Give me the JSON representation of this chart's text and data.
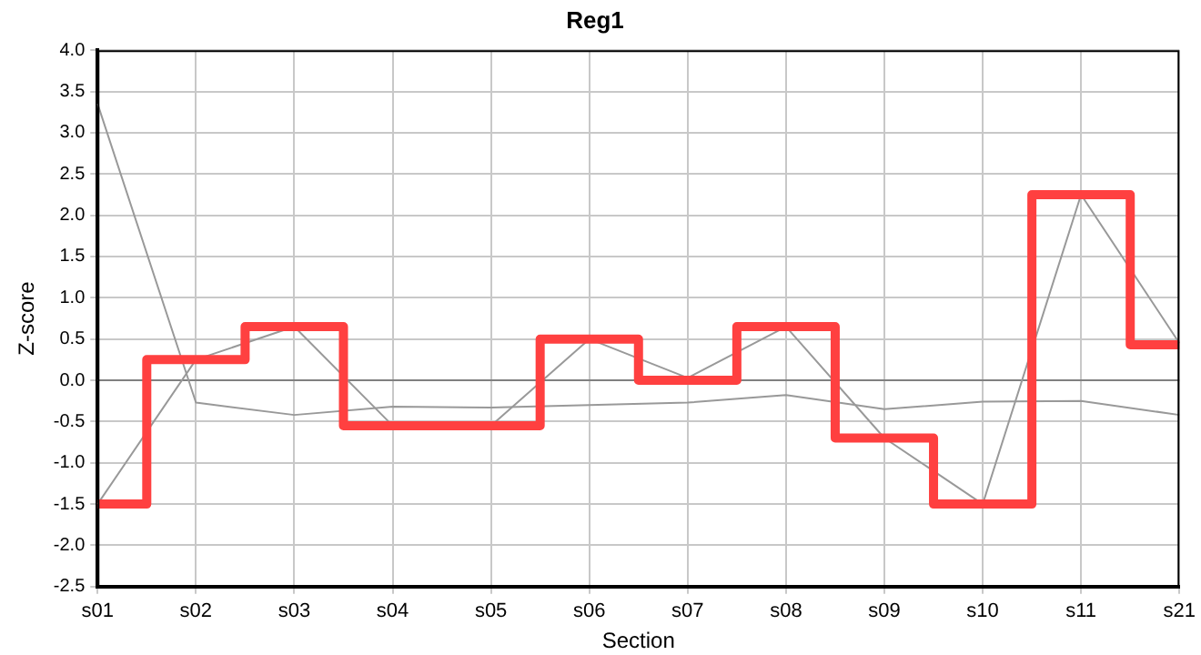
{
  "chart_data": {
    "type": "line",
    "title": "Reg1",
    "xlabel": "Section",
    "ylabel": "Z-score",
    "categories": [
      "s01",
      "s02",
      "s03",
      "s04",
      "s05",
      "s06",
      "s07",
      "s08",
      "s09",
      "s10",
      "s11",
      "s21"
    ],
    "series": [
      {
        "color": "#999999",
        "values": [
          3.35,
          -0.27,
          -0.42,
          -0.32,
          -0.33,
          -0.3,
          -0.27,
          -0.18,
          -0.35,
          -0.26,
          -0.25,
          -0.42
        ]
      },
      {
        "color": "#999999",
        "values": [
          -1.5,
          0.25,
          0.65,
          -0.55,
          -0.55,
          0.5,
          0.03,
          0.65,
          -0.7,
          -1.5,
          2.25,
          0.45
        ]
      },
      {
        "type": "step",
        "color": "#ff4040",
        "values": [
          -1.5,
          0.25,
          0.65,
          -0.55,
          -0.55,
          0.5,
          0.0,
          0.65,
          -0.7,
          -1.5,
          2.25,
          0.43
        ]
      }
    ],
    "ylim": [
      -2.5,
      4
    ],
    "yticks": [
      {
        "value": -2.5,
        "label": "-2.5"
      },
      {
        "value": -2,
        "label": "-2.0"
      },
      {
        "value": -1.5,
        "label": "-1.5"
      },
      {
        "value": -1,
        "label": "-1.0"
      },
      {
        "value": -0.5,
        "label": "-0.5"
      },
      {
        "value": 0,
        "label": "0.0"
      },
      {
        "value": 0.5,
        "label": "0.5"
      },
      {
        "value": 1,
        "label": "1.0"
      },
      {
        "value": 1.5,
        "label": "1.5"
      },
      {
        "value": 2,
        "label": "2.0"
      },
      {
        "value": 2.5,
        "label": "2.5"
      },
      {
        "value": 3,
        "label": "3.0"
      },
      {
        "value": 3.5,
        "label": "3.5"
      },
      {
        "value": 4,
        "label": "4.0"
      }
    ],
    "ref_lines": [
      {
        "axis": "y",
        "value": 0,
        "color": "#808080"
      }
    ],
    "grid": true,
    "legend": false,
    "marker": "none",
    "line_style": "solid"
  }
}
